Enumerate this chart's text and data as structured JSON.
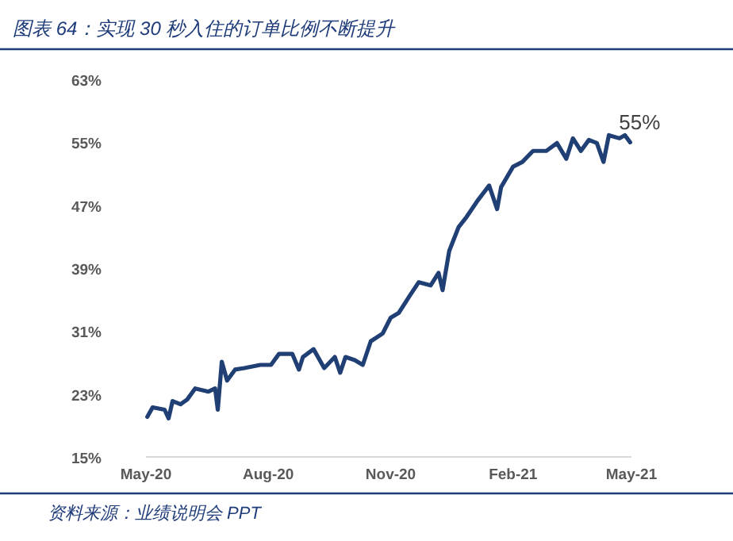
{
  "chart_data": {
    "type": "line",
    "title": "图表 64：实现 30 秒入住的订单比例不断提升",
    "annotations": [
      {
        "text": "55%",
        "x": "2021-04-30",
        "y": 55
      },
      "资料来源：业绩说明会 PPT"
    ],
    "series": [
      {
        "color": "#203f74",
        "x": [
          "2020-05-02",
          "2020-05-06",
          "2020-05-15",
          "2020-05-18",
          "2020-05-21",
          "2020-05-27",
          "2020-06-01",
          "2020-06-07",
          "2020-06-17",
          "2020-06-22",
          "2020-06-24",
          "2020-06-27",
          "2020-07-01",
          "2020-07-07",
          "2020-07-14",
          "2020-07-26",
          "2020-08-03",
          "2020-08-09",
          "2020-08-19",
          "2020-08-24",
          "2020-08-27",
          "2020-09-04",
          "2020-09-12",
          "2020-09-20",
          "2020-09-24",
          "2020-09-28",
          "2020-10-05",
          "2020-10-11",
          "2020-10-17",
          "2020-10-26",
          "2020-11-01",
          "2020-11-07",
          "2020-11-15",
          "2020-11-22",
          "2020-12-01",
          "2020-12-07",
          "2020-12-10",
          "2020-12-15",
          "2020-12-22",
          "2020-12-28",
          "2021-01-05",
          "2021-01-14",
          "2021-01-20",
          "2021-01-23",
          "2021-02-01",
          "2021-02-08",
          "2021-02-16",
          "2021-02-26",
          "2021-03-06",
          "2021-03-13",
          "2021-03-18",
          "2021-03-24",
          "2021-03-30",
          "2021-04-05",
          "2021-04-10",
          "2021-04-14",
          "2021-04-22",
          "2021-04-26",
          "2021-04-30"
        ],
        "values": [
          20.1,
          21.3,
          21.0,
          19.9,
          22.1,
          21.7,
          22.3,
          23.7,
          23.3,
          23.7,
          21.0,
          27.1,
          24.7,
          26.1,
          26.3,
          26.7,
          26.7,
          28.1,
          28.1,
          26.1,
          27.7,
          28.7,
          26.3,
          27.7,
          25.7,
          27.7,
          27.3,
          26.7,
          29.7,
          30.7,
          32.7,
          33.3,
          35.4,
          37.2,
          36.8,
          38.4,
          36.2,
          41.2,
          44.2,
          45.5,
          47.5,
          49.5,
          46.5,
          49.3,
          51.9,
          52.5,
          53.9,
          53.9,
          54.9,
          52.9,
          55.5,
          53.9,
          55.3,
          54.9,
          52.5,
          55.9,
          55.5,
          55.9,
          55
        ]
      }
    ],
    "xlim": [
      "2020-05-01",
      "2021-05-01"
    ],
    "xticks": [
      {
        "value": "2020-05-01",
        "label": "May-20"
      },
      {
        "value": "2020-08-01",
        "label": "Aug-20"
      },
      {
        "value": "2020-11-01",
        "label": "Nov-20"
      },
      {
        "value": "2021-02-01",
        "label": "Feb-21"
      },
      {
        "value": "2021-05-01",
        "label": "May-21"
      }
    ],
    "ylim": [
      15,
      63
    ],
    "yticks": [
      {
        "value": 15,
        "label": "15%"
      },
      {
        "value": 23,
        "label": "23%"
      },
      {
        "value": 31,
        "label": "31%"
      },
      {
        "value": 39,
        "label": "39%"
      },
      {
        "value": 47,
        "label": "47%"
      },
      {
        "value": 55,
        "label": "55%"
      },
      {
        "value": 63,
        "label": "63%"
      }
    ],
    "grid": false,
    "line_style": "solid",
    "marker": "none"
  }
}
